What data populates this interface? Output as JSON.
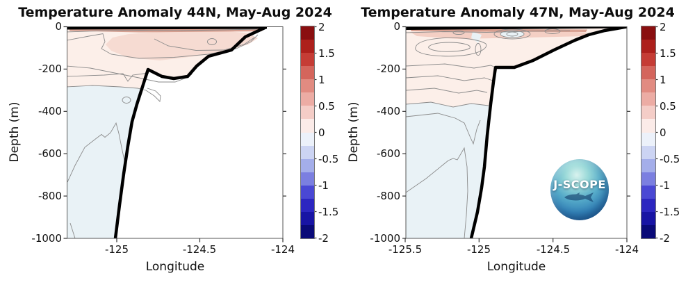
{
  "figure": {
    "background": "#ffffff"
  },
  "panels": [
    {
      "title": "Temperature Anomaly 44N, May-Aug 2024",
      "xlabel": "Longitude",
      "ylabel": "Depth (m)",
      "xticks": [
        "-125",
        "-124.5",
        "-124"
      ],
      "yticks": [
        "0",
        "-200",
        "-400",
        "-600",
        "-800",
        "-1000"
      ],
      "colorbar_ticks": [
        "2",
        "1.5",
        "1",
        "0.5",
        "0",
        "-0.5",
        "-1",
        "-1.5",
        "-2"
      ]
    },
    {
      "title": "Temperature Anomaly 47N, May-Aug 2024",
      "xlabel": "Longitude",
      "ylabel": "Depth (m)",
      "xticks": [
        "-125.5",
        "-125",
        "-124.5",
        "-124"
      ],
      "yticks": [
        "0",
        "-200",
        "-400",
        "-600",
        "-800",
        "-1000"
      ],
      "colorbar_ticks": [
        "2",
        "1.5",
        "1",
        "0.5",
        "0",
        "-0.5",
        "-1",
        "-1.5",
        "-2"
      ]
    }
  ],
  "colorbar": {
    "range": [
      -2,
      2
    ],
    "step": 0.25,
    "colors_top_to_bottom": [
      "#8a0f10",
      "#ad201c",
      "#c53c35",
      "#d4655c",
      "#e18b81",
      "#ecaca4",
      "#f4cdc7",
      "#fbebe8",
      "#ecf1fa",
      "#ccd4f3",
      "#a4aeea",
      "#7b7fe0",
      "#4a48d4",
      "#2c26c0",
      "#1814a4",
      "#0a0a78"
    ]
  },
  "colors": {
    "fill_warm_light": "#fcefe9",
    "fill_warm_mid": "#f6dbd2",
    "fill_surface_warm": "#cf8d7c",
    "fill_cool_light": "#e9f2f6",
    "contour_line": "#8a8a8a",
    "bathymetry": "#000000"
  },
  "logo": {
    "text": "J-SCOPE"
  },
  "chart_data": [
    {
      "type": "heatmap",
      "subtype": "filled-contour-section",
      "title": "Temperature Anomaly 44N, May-Aug 2024",
      "xlabel": "Longitude",
      "ylabel": "Depth (m)",
      "xlim": [
        -125.3,
        -124.0
      ],
      "ylim": [
        -1000,
        0
      ],
      "xticks": [
        -125,
        -124.5,
        -124
      ],
      "yticks": [
        0,
        -200,
        -400,
        -600,
        -800,
        -1000
      ],
      "colorbar": {
        "min": -2,
        "max": 2,
        "tick_step": 0.5,
        "contour_interval": 0.25
      },
      "bathymetry_lon_depth": [
        [
          -124.1,
          0
        ],
        [
          -124.23,
          -48
        ],
        [
          -124.31,
          -110
        ],
        [
          -124.45,
          -140
        ],
        [
          -124.52,
          -186
        ],
        [
          -124.57,
          -235
        ],
        [
          -124.66,
          -245
        ],
        [
          -124.73,
          -235
        ],
        [
          -124.81,
          -202
        ],
        [
          -124.85,
          -284
        ],
        [
          -124.88,
          -366
        ],
        [
          -124.91,
          -448
        ],
        [
          -124.93,
          -563
        ],
        [
          -124.96,
          -695
        ],
        [
          -124.98,
          -842
        ],
        [
          -125.01,
          -1000
        ]
      ],
      "anomaly_regions": [
        {
          "region": "surface thin layer (0 to ~-15 m)",
          "value_c": "+0.75 to +1"
        },
        {
          "region": "upper layer ~0 to -150 m offshore",
          "value_c": "+0.25 to +0.75"
        },
        {
          "region": "-150 m shelf-break pocket",
          "value_c": "0 to +0.25"
        },
        {
          "region": "below ~-280 m",
          "value_c": "-0.25 to 0"
        }
      ]
    },
    {
      "type": "heatmap",
      "subtype": "filled-contour-section",
      "title": "Temperature Anomaly 47N, May-Aug 2024",
      "xlabel": "Longitude",
      "ylabel": "Depth (m)",
      "xlim": [
        -125.5,
        -124.0
      ],
      "ylim": [
        -1000,
        0
      ],
      "xticks": [
        -125.5,
        -125,
        -124.5,
        -124
      ],
      "yticks": [
        0,
        -200,
        -400,
        -600,
        -800,
        -1000
      ],
      "colorbar": {
        "min": -2,
        "max": 2,
        "tick_step": 0.5,
        "contour_interval": 0.25
      },
      "bathymetry_lon_depth": [
        [
          -124.0,
          0
        ],
        [
          -124.15,
          -18
        ],
        [
          -124.26,
          -38
        ],
        [
          -124.35,
          -64
        ],
        [
          -124.5,
          -110
        ],
        [
          -124.64,
          -159
        ],
        [
          -124.76,
          -192
        ],
        [
          -124.89,
          -192
        ],
        [
          -124.91,
          -261
        ],
        [
          -124.92,
          -366
        ],
        [
          -124.95,
          -514
        ],
        [
          -124.97,
          -662
        ],
        [
          -124.99,
          -760
        ],
        [
          -125.01,
          -875
        ],
        [
          -125.06,
          -1000
        ]
      ],
      "anomaly_regions": [
        {
          "region": "surface layer with eddy-like closed contours (0 to ~-100 m)",
          "value_c": "0 to +0.5"
        },
        {
          "region": "mid shelf bullseye near -124.75, -30 m",
          "value_c": "near 0 (closed contours)"
        },
        {
          "region": "below ~-350 m",
          "value_c": "-0.25 to 0"
        }
      ]
    }
  ]
}
